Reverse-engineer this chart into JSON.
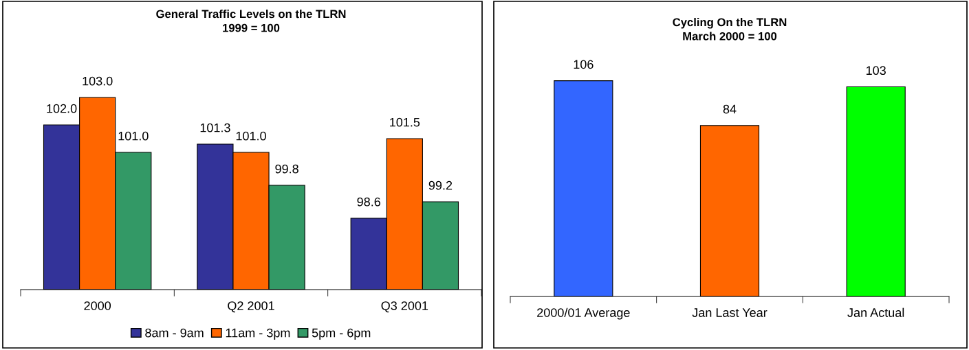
{
  "chart_data": [
    {
      "type": "bar",
      "title": "General Traffic Levels on the TLRN\n1999 = 100",
      "categories": [
        "2000",
        "Q2 2001",
        "Q3 2001"
      ],
      "series": [
        {
          "name": "8am - 9am",
          "color": "#333399",
          "values": [
            102.0,
            101.3,
            98.6
          ],
          "value_labels": [
            "102.0",
            "101.3",
            "98.6"
          ]
        },
        {
          "name": "11am - 3pm",
          "color": "#ff6600",
          "values": [
            103.0,
            101.0,
            101.5
          ],
          "value_labels": [
            "103.0",
            "101.0",
            "101.5"
          ]
        },
        {
          "name": "5pm - 6pm",
          "color": "#339966",
          "values": [
            101.0,
            99.8,
            99.2
          ],
          "value_labels": [
            "101.0",
            "99.8",
            "99.2"
          ]
        }
      ],
      "ylim": [
        96,
        106.5
      ],
      "legend": "bottom",
      "grid": false
    },
    {
      "type": "bar",
      "title": "Cycling On the TLRN\nMarch 2000 = 100",
      "categories": [
        "2000/01 Average",
        "Jan Last Year",
        "Jan Actual"
      ],
      "values": [
        106,
        84,
        103
      ],
      "colors": [
        "#3366ff",
        "#ff6600",
        "#00ff00"
      ],
      "data_labels": true,
      "ylim": [
        0,
        145
      ],
      "grid": false
    }
  ]
}
